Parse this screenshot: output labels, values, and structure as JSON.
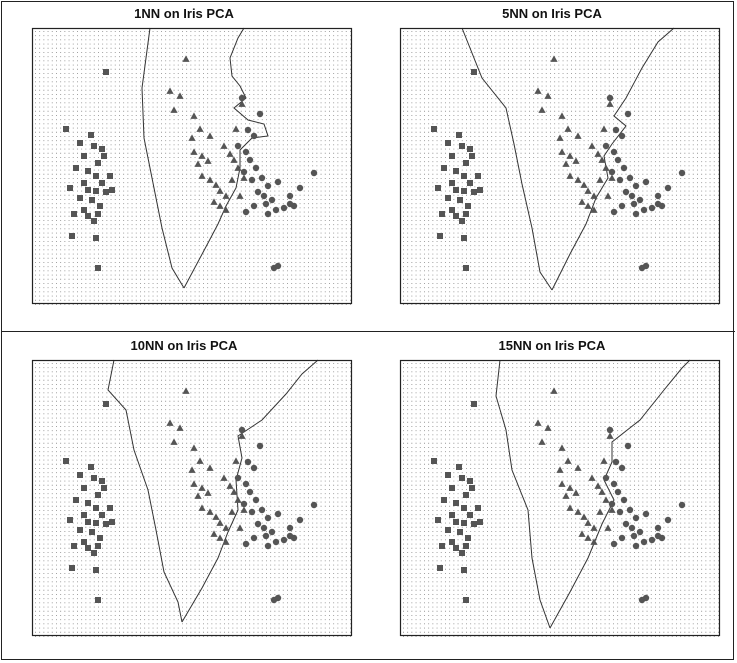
{
  "chart_data": [
    {
      "type": "scatter",
      "title": "1NN on Iris PCA",
      "k": 1
    },
    {
      "type": "scatter",
      "title": "5NN on Iris PCA",
      "k": 5
    },
    {
      "type": "scatter",
      "title": "10NN on Iris PCA",
      "k": 10
    },
    {
      "type": "scatter",
      "title": "15NN on Iris PCA",
      "k": 15
    }
  ],
  "colors": {
    "marker": "#555555",
    "grid_dot": "#8a8a8a",
    "boundary": "#333333",
    "frame": "#222222"
  }
}
